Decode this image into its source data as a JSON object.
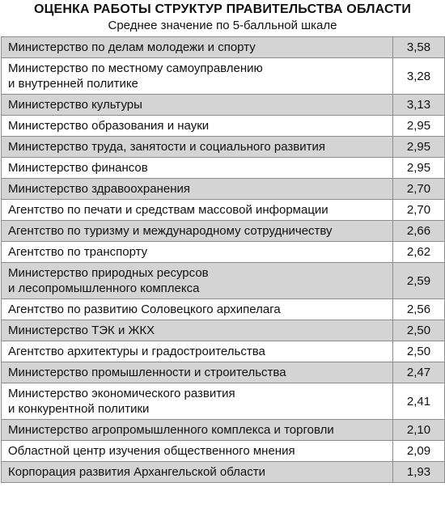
{
  "header": {
    "title": "ОЦЕНКА РАБОТЫ СТРУКТУР ПРАВИТЕЛЬСТВА ОБЛАСТИ",
    "subtitle": "Среднее значение по 5-балльной шкале"
  },
  "rows": [
    {
      "name": "Министерство по делам молодежи и спорту",
      "value": "3,58",
      "shaded": true,
      "lines": 1
    },
    {
      "name": "Министерство по местному самоуправлению\nи внутренней политике",
      "value": "3,28",
      "shaded": false,
      "lines": 2
    },
    {
      "name": "Министерство культуры",
      "value": "3,13",
      "shaded": true,
      "lines": 1
    },
    {
      "name": "Министерство образования и науки",
      "value": "2,95",
      "shaded": false,
      "lines": 1
    },
    {
      "name": "Министерство труда, занятости и социального развития",
      "value": "2,95",
      "shaded": true,
      "lines": 1
    },
    {
      "name": "Министерство финансов",
      "value": "2,95",
      "shaded": false,
      "lines": 1
    },
    {
      "name": "Министерство здравоохранения",
      "value": "2,70",
      "shaded": true,
      "lines": 1
    },
    {
      "name": "Агентство по печати и средствам массовой информации",
      "value": "2,70",
      "shaded": false,
      "lines": 1
    },
    {
      "name": "Агентство по туризму и международному сотрудничеству",
      "value": "2,66",
      "shaded": true,
      "lines": 1
    },
    {
      "name": "Агентство по транспорту",
      "value": "2,62",
      "shaded": false,
      "lines": 1
    },
    {
      "name": "Министерство природных ресурсов\nи лесопромышленного комплекса",
      "value": "2,59",
      "shaded": true,
      "lines": 2
    },
    {
      "name": "Агентство по развитию Соловецкого архипелага",
      "value": "2,56",
      "shaded": false,
      "lines": 1
    },
    {
      "name": "Министерство ТЭК и ЖКХ",
      "value": "2,50",
      "shaded": true,
      "lines": 1
    },
    {
      "name": "Агентство архитектуры и градостроительства",
      "value": "2,50",
      "shaded": false,
      "lines": 1
    },
    {
      "name": "Министерство промышленности и строительства",
      "value": "2,47",
      "shaded": true,
      "lines": 1
    },
    {
      "name": "Министерство экономического развития\nи конкурентной политики",
      "value": "2,41",
      "shaded": false,
      "lines": 2
    },
    {
      "name": "Министерство агропромышленного комплекса и торговли",
      "value": "2,10",
      "shaded": true,
      "lines": 1
    },
    {
      "name": "Областной центр изучения общественного мнения",
      "value": "2,09",
      "shaded": false,
      "lines": 1
    },
    {
      "name": "Корпорация развития Архангельской области",
      "value": "1,93",
      "shaded": true,
      "lines": 1
    }
  ]
}
